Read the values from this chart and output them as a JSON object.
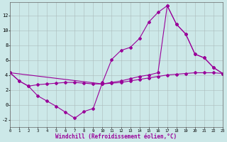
{
  "bg_color": "#cce8e8",
  "line_color": "#990099",
  "grid_color": "#aabbbb",
  "xlim": [
    0,
    23
  ],
  "ylim": [
    -3.0,
    13.8
  ],
  "xticks": [
    0,
    1,
    2,
    3,
    4,
    5,
    6,
    7,
    8,
    9,
    10,
    11,
    12,
    13,
    14,
    15,
    16,
    17,
    18,
    19,
    20,
    21,
    22,
    23
  ],
  "yticks": [
    -2,
    0,
    2,
    4,
    6,
    8,
    10,
    12
  ],
  "xlabel": "Windchill (Refroidissement éolien,°C)",
  "line1_x": [
    0,
    1,
    2,
    3,
    4,
    5,
    6,
    7,
    8,
    9,
    10,
    11,
    12,
    13,
    14,
    15,
    16,
    17,
    18,
    19,
    20,
    21,
    22,
    23
  ],
  "line1_y": [
    4.3,
    3.2,
    2.5,
    2.7,
    2.8,
    2.9,
    3.0,
    3.0,
    2.9,
    2.8,
    2.8,
    2.9,
    3.0,
    3.2,
    3.4,
    3.6,
    3.8,
    4.0,
    4.1,
    4.2,
    4.3,
    4.3,
    4.3,
    4.2
  ],
  "line2_x": [
    0,
    1,
    2,
    3,
    4,
    5,
    6,
    7,
    8,
    9,
    10,
    11,
    12,
    13,
    14,
    15,
    16,
    17,
    18,
    19,
    20,
    21,
    22,
    23
  ],
  "line2_y": [
    4.3,
    3.2,
    2.5,
    1.2,
    0.5,
    -0.2,
    -1.0,
    -1.8,
    -0.9,
    -0.5,
    3.0,
    6.1,
    7.3,
    7.7,
    8.9,
    11.1,
    12.4,
    13.3,
    10.8,
    9.5,
    6.8,
    6.3,
    5.0,
    4.2
  ],
  "line3_x": [
    0,
    10,
    11,
    12,
    13,
    14,
    15,
    16,
    17,
    18,
    19,
    20,
    21,
    22,
    23
  ],
  "line3_y": [
    4.3,
    2.8,
    3.0,
    3.2,
    3.5,
    3.8,
    4.0,
    4.3,
    13.3,
    10.8,
    9.5,
    6.8,
    6.3,
    5.0,
    4.2
  ]
}
